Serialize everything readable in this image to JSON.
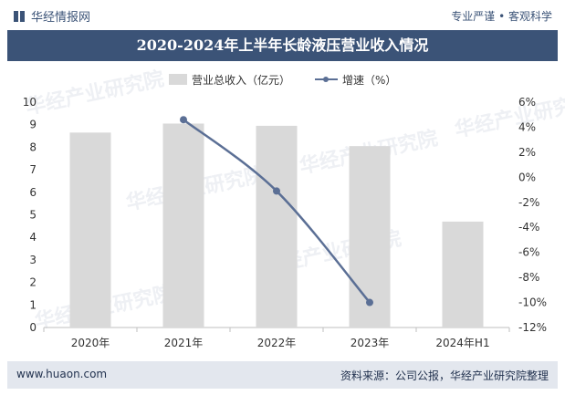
{
  "header": {
    "brand": "华经情报网",
    "brand_icon": "book-icon",
    "tagline": "专业严谨 • 客观科学"
  },
  "title": "2020-2024年上半年长龄液压营业收入情况",
  "footer": {
    "website": "www.huaon.com",
    "source": "资料来源：公司公报，华经产业研究院整理"
  },
  "watermark": "华经产业研究院",
  "colors": {
    "bar": "#d9d9d9",
    "line": "#5b6f95",
    "title_bg": "#3b5377",
    "footer_bg": "#e3e7ee"
  },
  "chart_data": {
    "type": "bar",
    "categories": [
      "2020年",
      "2021年",
      "2022年",
      "2023年",
      "2024年H1"
    ],
    "series": [
      {
        "name": "营业总收入（亿元）",
        "type": "bar",
        "axis": "left",
        "values": [
          8.65,
          9.05,
          8.95,
          8.05,
          4.7
        ]
      },
      {
        "name": "增速（%）",
        "type": "line",
        "axis": "right",
        "values": [
          null,
          4.6,
          -1.1,
          -10.0,
          null
        ]
      }
    ],
    "y_left": {
      "min": 0,
      "max": 10,
      "step": 1,
      "ticks": [
        "0",
        "1",
        "2",
        "3",
        "4",
        "5",
        "6",
        "7",
        "8",
        "9",
        "10"
      ]
    },
    "y_right": {
      "min": -12,
      "max": 6,
      "step": 2,
      "ticks": [
        "-12%",
        "-10%",
        "-8%",
        "-6%",
        "-4%",
        "-2%",
        "0%",
        "2%",
        "4%",
        "6%"
      ]
    },
    "legend_position": "top",
    "grid": false
  }
}
